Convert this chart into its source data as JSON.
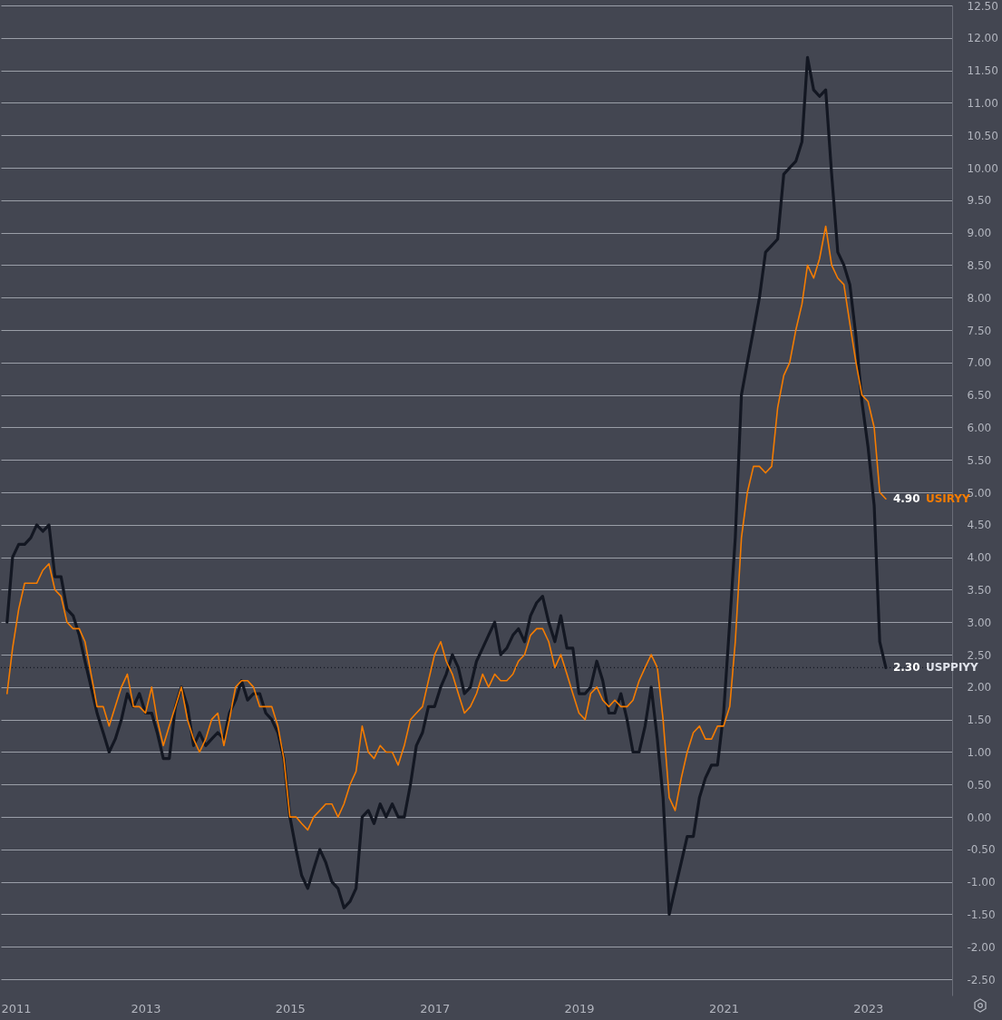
{
  "chart_data": {
    "type": "line",
    "x": [
      "2011-02",
      "2011-03",
      "2011-04",
      "2011-05",
      "2011-06",
      "2011-07",
      "2011-08",
      "2011-09",
      "2011-10",
      "2011-11",
      "2011-12",
      "2012-01",
      "2012-02",
      "2012-03",
      "2012-04",
      "2012-05",
      "2012-06",
      "2012-07",
      "2012-08",
      "2012-09",
      "2012-10",
      "2012-11",
      "2012-12",
      "2013-01",
      "2013-02",
      "2013-03",
      "2013-04",
      "2013-05",
      "2013-06",
      "2013-07",
      "2013-08",
      "2013-09",
      "2013-10",
      "2013-11",
      "2013-12",
      "2014-01",
      "2014-02",
      "2014-03",
      "2014-04",
      "2014-05",
      "2014-06",
      "2014-07",
      "2014-08",
      "2014-09",
      "2014-10",
      "2014-11",
      "2014-12",
      "2015-01",
      "2015-02",
      "2015-03",
      "2015-04",
      "2015-05",
      "2015-06",
      "2015-07",
      "2015-08",
      "2015-09",
      "2015-10",
      "2015-11",
      "2015-12",
      "2016-01",
      "2016-02",
      "2016-03",
      "2016-04",
      "2016-05",
      "2016-06",
      "2016-07",
      "2016-08",
      "2016-09",
      "2016-10",
      "2016-11",
      "2016-12",
      "2017-01",
      "2017-02",
      "2017-03",
      "2017-04",
      "2017-05",
      "2017-06",
      "2017-07",
      "2017-08",
      "2017-09",
      "2017-10",
      "2017-11",
      "2017-12",
      "2018-01",
      "2018-02",
      "2018-03",
      "2018-04",
      "2018-05",
      "2018-06",
      "2018-07",
      "2018-08",
      "2018-09",
      "2018-10",
      "2018-11",
      "2018-12",
      "2019-01",
      "2019-02",
      "2019-03",
      "2019-04",
      "2019-05",
      "2019-06",
      "2019-07",
      "2019-08",
      "2019-09",
      "2019-10",
      "2019-11",
      "2019-12",
      "2020-01",
      "2020-02",
      "2020-03",
      "2020-04",
      "2020-05",
      "2020-06",
      "2020-07",
      "2020-08",
      "2020-09",
      "2020-10",
      "2020-11",
      "2020-12",
      "2021-01",
      "2021-02",
      "2021-03",
      "2021-04",
      "2021-05",
      "2021-06",
      "2021-07",
      "2021-08",
      "2021-09",
      "2021-10",
      "2021-11",
      "2021-12",
      "2022-01",
      "2022-02",
      "2022-03",
      "2022-04",
      "2022-05",
      "2022-06",
      "2022-07",
      "2022-08",
      "2022-09",
      "2022-10",
      "2022-11",
      "2022-12",
      "2023-01",
      "2023-02",
      "2023-03",
      "2023-04"
    ],
    "xlim": [
      "2011-01",
      "2024-03"
    ],
    "xticks": [
      "2011",
      "2013",
      "2015",
      "2017",
      "2019",
      "2021",
      "2023"
    ],
    "ylim": [
      -2.75,
      12.5
    ],
    "yticks": [
      {
        "value": -2.5,
        "label": "-2.50"
      },
      {
        "value": -2,
        "label": "-2.00"
      },
      {
        "value": -1.5,
        "label": "-1.50"
      },
      {
        "value": -1,
        "label": "-1.00"
      },
      {
        "value": -0.5,
        "label": "-0.50"
      },
      {
        "value": 0,
        "label": "0.00"
      },
      {
        "value": 0.5,
        "label": "0.50"
      },
      {
        "value": 1,
        "label": "1.00"
      },
      {
        "value": 1.5,
        "label": "1.50"
      },
      {
        "value": 2,
        "label": "2.00"
      },
      {
        "value": 2.5,
        "label": "2.50"
      },
      {
        "value": 3,
        "label": "3.00"
      },
      {
        "value": 3.5,
        "label": "3.50"
      },
      {
        "value": 4,
        "label": "4.00"
      },
      {
        "value": 4.5,
        "label": "4.50"
      },
      {
        "value": 5,
        "label": "5.00"
      },
      {
        "value": 5.5,
        "label": "5.50"
      },
      {
        "value": 6,
        "label": "6.00"
      },
      {
        "value": 6.5,
        "label": "6.50"
      },
      {
        "value": 7,
        "label": "7.00"
      },
      {
        "value": 7.5,
        "label": "7.50"
      },
      {
        "value": 8,
        "label": "8.00"
      },
      {
        "value": 8.5,
        "label": "8.50"
      },
      {
        "value": 9,
        "label": "9.00"
      },
      {
        "value": 9.5,
        "label": "9.50"
      },
      {
        "value": 10,
        "label": "10.00"
      },
      {
        "value": 10.5,
        "label": "10.50"
      },
      {
        "value": 11,
        "label": "11.00"
      },
      {
        "value": 11.5,
        "label": "11.50"
      },
      {
        "value": 12,
        "label": "12.00"
      },
      {
        "value": 12.5,
        "label": "12.50"
      }
    ],
    "grid": "y",
    "ref_lines": [
      {
        "axis": "y",
        "value": 2.3,
        "color": "#131722",
        "line_style": "dotted"
      }
    ],
    "annotations": [
      {
        "text": "4.90",
        "x": "2023-04",
        "y": 4.9
      },
      {
        "text": "2.30",
        "x": "2023-04",
        "y": 2.3
      }
    ],
    "series": [
      {
        "name": "USIRYY",
        "color": "#f57c00",
        "values": [
          1.9,
          2.6,
          3.2,
          3.6,
          3.6,
          3.6,
          3.8,
          3.9,
          3.5,
          3.4,
          3.0,
          2.9,
          2.9,
          2.7,
          2.2,
          1.7,
          1.7,
          1.4,
          1.7,
          2.0,
          2.2,
          1.7,
          1.7,
          1.6,
          2.0,
          1.5,
          1.1,
          1.4,
          1.7,
          2.0,
          1.5,
          1.2,
          1.0,
          1.2,
          1.5,
          1.6,
          1.1,
          1.5,
          2.0,
          2.1,
          2.1,
          2.0,
          1.7,
          1.7,
          1.7,
          1.4,
          0.9,
          0.0,
          0.0,
          -0.1,
          -0.2,
          0.0,
          0.1,
          0.2,
          0.2,
          0.0,
          0.2,
          0.5,
          0.7,
          1.4,
          1.0,
          0.9,
          1.1,
          1.0,
          1.0,
          0.8,
          1.1,
          1.5,
          1.6,
          1.7,
          2.1,
          2.5,
          2.7,
          2.4,
          2.2,
          1.9,
          1.6,
          1.7,
          1.9,
          2.2,
          2.0,
          2.2,
          2.1,
          2.1,
          2.2,
          2.4,
          2.5,
          2.8,
          2.9,
          2.9,
          2.7,
          2.3,
          2.5,
          2.2,
          1.9,
          1.6,
          1.5,
          1.9,
          2.0,
          1.8,
          1.7,
          1.8,
          1.7,
          1.7,
          1.8,
          2.1,
          2.3,
          2.5,
          2.3,
          1.5,
          0.3,
          0.1,
          0.6,
          1.0,
          1.3,
          1.4,
          1.2,
          1.2,
          1.4,
          1.4,
          1.7,
          2.7,
          4.3,
          5.0,
          5.4,
          5.4,
          5.3,
          5.4,
          6.3,
          6.8,
          7.0,
          7.5,
          7.9,
          8.5,
          8.3,
          8.6,
          9.1,
          8.5,
          8.3,
          8.2,
          7.6,
          7.0,
          6.5,
          6.4,
          6.0,
          5.0,
          4.9
        ]
      },
      {
        "name": "USPPIYY",
        "color": "#131722",
        "values": [
          3.0,
          4.0,
          4.2,
          4.2,
          4.3,
          4.5,
          4.4,
          4.5,
          3.7,
          3.7,
          3.2,
          3.1,
          2.8,
          2.4,
          2.0,
          1.6,
          1.3,
          1.0,
          1.2,
          1.5,
          1.9,
          1.7,
          1.9,
          1.6,
          1.6,
          1.3,
          0.9,
          0.9,
          1.7,
          2.0,
          1.7,
          1.1,
          1.3,
          1.1,
          1.2,
          1.3,
          1.2,
          1.6,
          1.8,
          2.1,
          1.8,
          1.9,
          1.9,
          1.6,
          1.5,
          1.3,
          0.9,
          0.0,
          -0.5,
          -0.9,
          -1.1,
          -0.8,
          -0.5,
          -0.7,
          -1.0,
          -1.1,
          -1.4,
          -1.3,
          -1.1,
          0.0,
          0.1,
          -0.1,
          0.2,
          0.0,
          0.2,
          0.0,
          0.0,
          0.5,
          1.1,
          1.3,
          1.7,
          1.7,
          2.0,
          2.2,
          2.5,
          2.3,
          1.9,
          2.0,
          2.4,
          2.6,
          2.8,
          3.0,
          2.5,
          2.6,
          2.8,
          2.9,
          2.7,
          3.1,
          3.3,
          3.4,
          3.0,
          2.7,
          3.1,
          2.6,
          2.6,
          1.9,
          1.9,
          2.0,
          2.4,
          2.1,
          1.6,
          1.6,
          1.9,
          1.5,
          1.0,
          1.0,
          1.4,
          2.0,
          1.2,
          0.3,
          -1.5,
          -1.1,
          -0.7,
          -0.3,
          -0.3,
          0.3,
          0.6,
          0.8,
          0.8,
          1.6,
          3.0,
          4.3,
          6.5,
          7.0,
          7.5,
          8.0,
          8.7,
          8.8,
          8.9,
          9.9,
          10.0,
          10.1,
          10.4,
          11.7,
          11.2,
          11.1,
          11.2,
          9.9,
          8.7,
          8.5,
          8.2,
          7.4,
          6.4,
          5.7,
          4.8,
          2.7,
          2.3
        ]
      }
    ]
  }
}
